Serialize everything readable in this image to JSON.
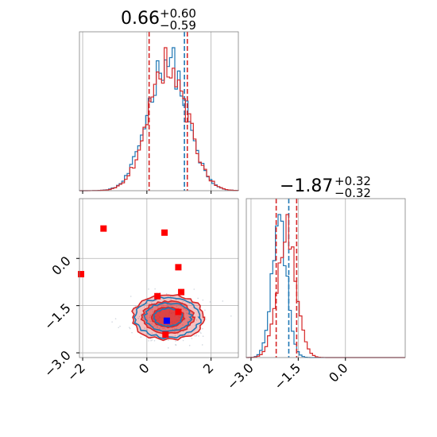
{
  "chart_data": [
    {
      "panel": "histogram-param1",
      "type": "histogram",
      "title": {
        "median": "0.66",
        "plus": "+0.60",
        "minus": "−0.59"
      },
      "xlim": [
        -2.1,
        2.85
      ],
      "grid": true,
      "series": [
        {
          "color": "#1f77b4",
          "median": 1.17,
          "center": 0.63,
          "sigma": 0.6
        },
        {
          "color": "#d62728",
          "median": 1.26,
          "center": 0.66,
          "sigma": 0.6
        }
      ],
      "lower_quantile": 0.07,
      "x_ticks": [
        -2,
        0,
        2
      ]
    },
    {
      "panel": "scatter-contour",
      "type": "scatter",
      "xlim": [
        -2.1,
        2.85
      ],
      "ylim": [
        -3.15,
        1.9
      ],
      "grid": true,
      "x_ticks": [
        -2,
        0,
        2
      ],
      "x_tick_labels": [
        "−2",
        "0",
        "2"
      ],
      "y_ticks": [
        0.0,
        -1.5,
        -3.0
      ],
      "y_tick_labels": [
        "0.0",
        "−1.5",
        "−3.0"
      ],
      "contour_center": [
        0.66,
        -1.87
      ],
      "contour_sigma": [
        0.55,
        0.35
      ],
      "red_points": [
        {
          "x": -1.35,
          "y": 0.95
        },
        {
          "x": 0.55,
          "y": 0.82
        },
        {
          "x": -2.05,
          "y": -0.5
        },
        {
          "x": 0.98,
          "y": -0.28
        },
        {
          "x": 1.07,
          "y": -1.07
        },
        {
          "x": 0.33,
          "y": -1.2
        },
        {
          "x": 0.98,
          "y": -1.7
        },
        {
          "x": 0.58,
          "y": -2.42
        }
      ],
      "blue_points": [
        {
          "x": 0.62,
          "y": -1.98
        }
      ],
      "colors": {
        "red": "#ff0000",
        "blue": "#0000ff",
        "contour_red": "#d62728",
        "contour_blue": "#1f77b4"
      }
    },
    {
      "panel": "histogram-param2",
      "type": "histogram",
      "title": {
        "median": "−1.87",
        "plus": "+0.32",
        "minus": "−0.32"
      },
      "xlim": [
        -3.15,
        1.9
      ],
      "grid": true,
      "series": [
        {
          "color": "#1f77b4",
          "median": -1.8,
          "center": -2.1,
          "sigma": 0.24
        },
        {
          "color": "#d62728",
          "median": -1.55,
          "center": -1.87,
          "sigma": 0.3
        }
      ],
      "lower_quantile": -2.2,
      "x_ticks": [
        -3.0,
        -1.5,
        0.0
      ],
      "x_tick_labels": [
        "−3.0",
        "−1.5",
        "0.0"
      ]
    }
  ]
}
